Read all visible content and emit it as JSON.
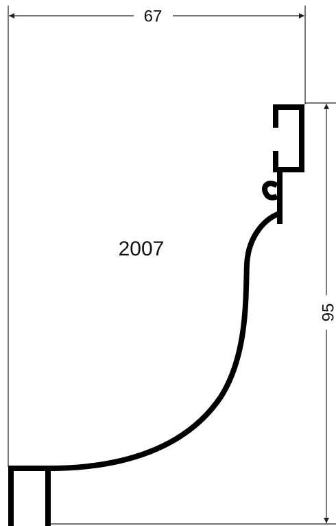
{
  "width_dimension": 67,
  "height_dimension": 95,
  "profile_label": "2007"
}
